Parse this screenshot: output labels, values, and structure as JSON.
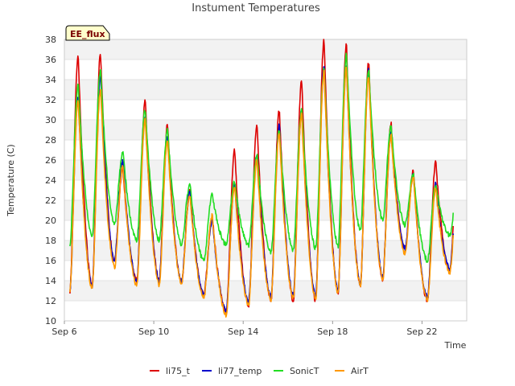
{
  "chart_data": {
    "type": "line",
    "title": "Instument Temperatures",
    "xlabel": "Time",
    "ylabel": "Temperature (C)",
    "site_label": "EE_flux",
    "xlim": [
      "Sep 6",
      "Sep 24"
    ],
    "ylim": [
      10,
      38
    ],
    "x_ticks": [
      {
        "label": "Sep 6",
        "day": 6
      },
      {
        "label": "Sep 10",
        "day": 10
      },
      {
        "label": "Sep 14",
        "day": 14
      },
      {
        "label": "Sep 18",
        "day": 18
      },
      {
        "label": "Sep 22",
        "day": 22
      }
    ],
    "y_ticks": [
      10,
      12,
      14,
      16,
      18,
      20,
      22,
      24,
      26,
      28,
      30,
      32,
      34,
      36,
      38
    ],
    "grid": true,
    "legend_position": "bottom",
    "daily_extremes": {
      "days": [
        "Sep 6",
        "Sep 7",
        "Sep 8",
        "Sep 9",
        "Sep 10",
        "Sep 11",
        "Sep 12",
        "Sep 13",
        "Sep 14",
        "Sep 15",
        "Sep 16",
        "Sep 17",
        "Sep 18",
        "Sep 19",
        "Sep 20",
        "Sep 21",
        "Sep 22",
        "Sep 23"
      ]
    },
    "series": [
      {
        "name": "li75_t",
        "color": "#dd0000",
        "daily_min": [
          12.9,
          13.4,
          15.9,
          14.0,
          14.0,
          13.9,
          12.6,
          10.8,
          11.5,
          12.0,
          12.0,
          12.0,
          12.8,
          13.5,
          14.0,
          17.2,
          12.0,
          15.0
        ],
        "daily_max": [
          36.5,
          36.6,
          25.2,
          32.0,
          29.5,
          23.0,
          20.5,
          27.0,
          29.4,
          31.0,
          34.0,
          38.0,
          37.5,
          35.8,
          29.7,
          25.0,
          25.8,
          25.8
        ]
      },
      {
        "name": "li77_temp",
        "color": "#0000cc",
        "daily_min": [
          12.9,
          13.4,
          15.9,
          14.0,
          14.0,
          13.9,
          12.6,
          11.0,
          12.0,
          12.4,
          12.6,
          12.5,
          13.0,
          13.6,
          14.3,
          17.2,
          12.3,
          15.2
        ],
        "daily_max": [
          32.5,
          34.5,
          26.0,
          30.5,
          28.5,
          22.8,
          20.0,
          23.8,
          26.7,
          29.5,
          31.0,
          35.5,
          35.5,
          35.0,
          28.7,
          24.5,
          23.6,
          23.6
        ]
      },
      {
        "name": "SonicT",
        "color": "#22dd22",
        "daily_min": [
          17.5,
          18.5,
          19.5,
          18.0,
          18.0,
          17.6,
          16.0,
          17.6,
          17.5,
          16.8,
          17.0,
          17.2,
          17.5,
          19.0,
          20.0,
          19.5,
          16.0,
          18.5
        ],
        "daily_max": [
          33.5,
          35.0,
          26.8,
          31.0,
          29.0,
          23.6,
          22.6,
          23.8,
          26.5,
          29.0,
          31.0,
          35.0,
          36.5,
          35.0,
          29.3,
          24.6,
          23.5,
          23.5
        ]
      },
      {
        "name": "AirT",
        "color": "#ff9900",
        "daily_min": [
          13.0,
          13.2,
          15.3,
          13.5,
          13.6,
          13.8,
          12.3,
          10.6,
          11.6,
          12.1,
          12.2,
          12.2,
          12.8,
          13.5,
          14.1,
          16.7,
          12.0,
          14.8
        ],
        "daily_max": [
          32.0,
          33.0,
          25.5,
          30.0,
          28.0,
          22.5,
          20.5,
          23.5,
          26.0,
          28.8,
          30.5,
          35.0,
          35.2,
          34.5,
          28.5,
          24.3,
          23.2,
          23.2
        ]
      }
    ]
  }
}
